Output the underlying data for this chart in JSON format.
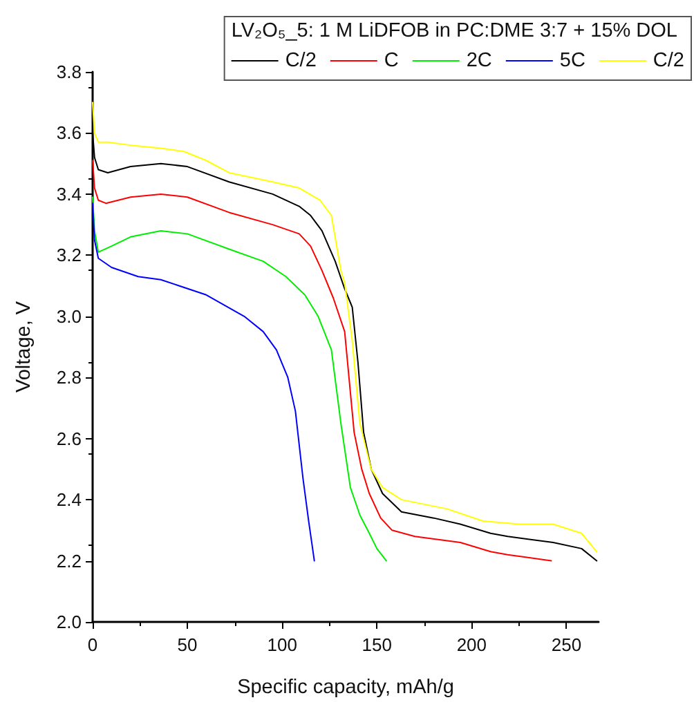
{
  "chart_data": {
    "type": "line",
    "xlabel": "Specific capacity, mAh/g",
    "ylabel": "Voltage, V",
    "legend_title": "LV₂O₅_5: 1 M LiDFOB in PC:DME 3:7 + 15% DOL",
    "legend": "top right",
    "grid": false,
    "marker": "none",
    "line_style": "solid",
    "xlim": [
      0,
      267
    ],
    "xticks": [
      0,
      50,
      100,
      150,
      200,
      250
    ],
    "ylim": [
      2.0,
      3.8
    ],
    "yticks": [
      {
        "value": 2,
        "label": "2.0"
      },
      2.2,
      2.4,
      2.6,
      2.8,
      {
        "value": 3,
        "label": "3.0"
      },
      3.2,
      3.4,
      3.6,
      3.8
    ],
    "series": [
      {
        "name": "C/2",
        "color": "#000000",
        "x": [
          0,
          1,
          3,
          8,
          20,
          36,
          50,
          72,
          95,
          109,
          115,
          121,
          128,
          133,
          137,
          140,
          143,
          147,
          153,
          163,
          180,
          194,
          210,
          219,
          243,
          258,
          266
        ],
        "values": [
          3.6,
          3.52,
          3.48,
          3.47,
          3.49,
          3.5,
          3.49,
          3.44,
          3.4,
          3.36,
          3.33,
          3.28,
          3.18,
          3.09,
          3.03,
          2.85,
          2.62,
          2.5,
          2.42,
          2.36,
          2.34,
          2.32,
          2.29,
          2.28,
          2.26,
          2.24,
          2.2
        ]
      },
      {
        "name": "C",
        "color": "#ff0000",
        "x": [
          0,
          1,
          3,
          7,
          20,
          36,
          50,
          72,
          95,
          109,
          115,
          121,
          127,
          133,
          138,
          142,
          146,
          152,
          158,
          170,
          194,
          210,
          219,
          242
        ],
        "values": [
          3.51,
          3.42,
          3.38,
          3.37,
          3.39,
          3.4,
          3.39,
          3.34,
          3.3,
          3.27,
          3.23,
          3.15,
          3.06,
          2.95,
          2.62,
          2.5,
          2.42,
          2.34,
          2.3,
          2.28,
          2.26,
          2.23,
          2.22,
          2.2
        ]
      },
      {
        "name": "2C",
        "color": "#00ee00",
        "x": [
          0,
          1,
          3,
          10,
          20,
          36,
          50,
          72,
          90,
          102,
          112,
          119,
          126,
          131,
          136,
          141,
          146,
          150,
          155
        ],
        "values": [
          3.39,
          3.28,
          3.21,
          3.23,
          3.26,
          3.28,
          3.27,
          3.22,
          3.18,
          3.13,
          3.07,
          3.0,
          2.89,
          2.65,
          2.44,
          2.35,
          2.29,
          2.24,
          2.2
        ]
      },
      {
        "name": "5C",
        "color": "#0000ff",
        "x": [
          0,
          1,
          3,
          10,
          24,
          36,
          60,
          80,
          90,
          97,
          103,
          107,
          111,
          114,
          117
        ],
        "values": [
          3.37,
          3.25,
          3.19,
          3.16,
          3.13,
          3.12,
          3.07,
          3.0,
          2.95,
          2.89,
          2.8,
          2.69,
          2.47,
          2.33,
          2.2
        ]
      },
      {
        "name": "C/2",
        "color": "#ffff00",
        "x": [
          0,
          1,
          3,
          8,
          20,
          36,
          48,
          60,
          72,
          95,
          109,
          120,
          126,
          131,
          133,
          137,
          141,
          147,
          153,
          163,
          187,
          206,
          225,
          243,
          258,
          266
        ],
        "values": [
          3.7,
          3.6,
          3.57,
          3.57,
          3.56,
          3.55,
          3.54,
          3.51,
          3.47,
          3.44,
          3.42,
          3.38,
          3.33,
          3.15,
          3.11,
          2.92,
          2.65,
          2.5,
          2.44,
          2.4,
          2.37,
          2.33,
          2.32,
          2.32,
          2.29,
          2.23
        ]
      }
    ]
  }
}
